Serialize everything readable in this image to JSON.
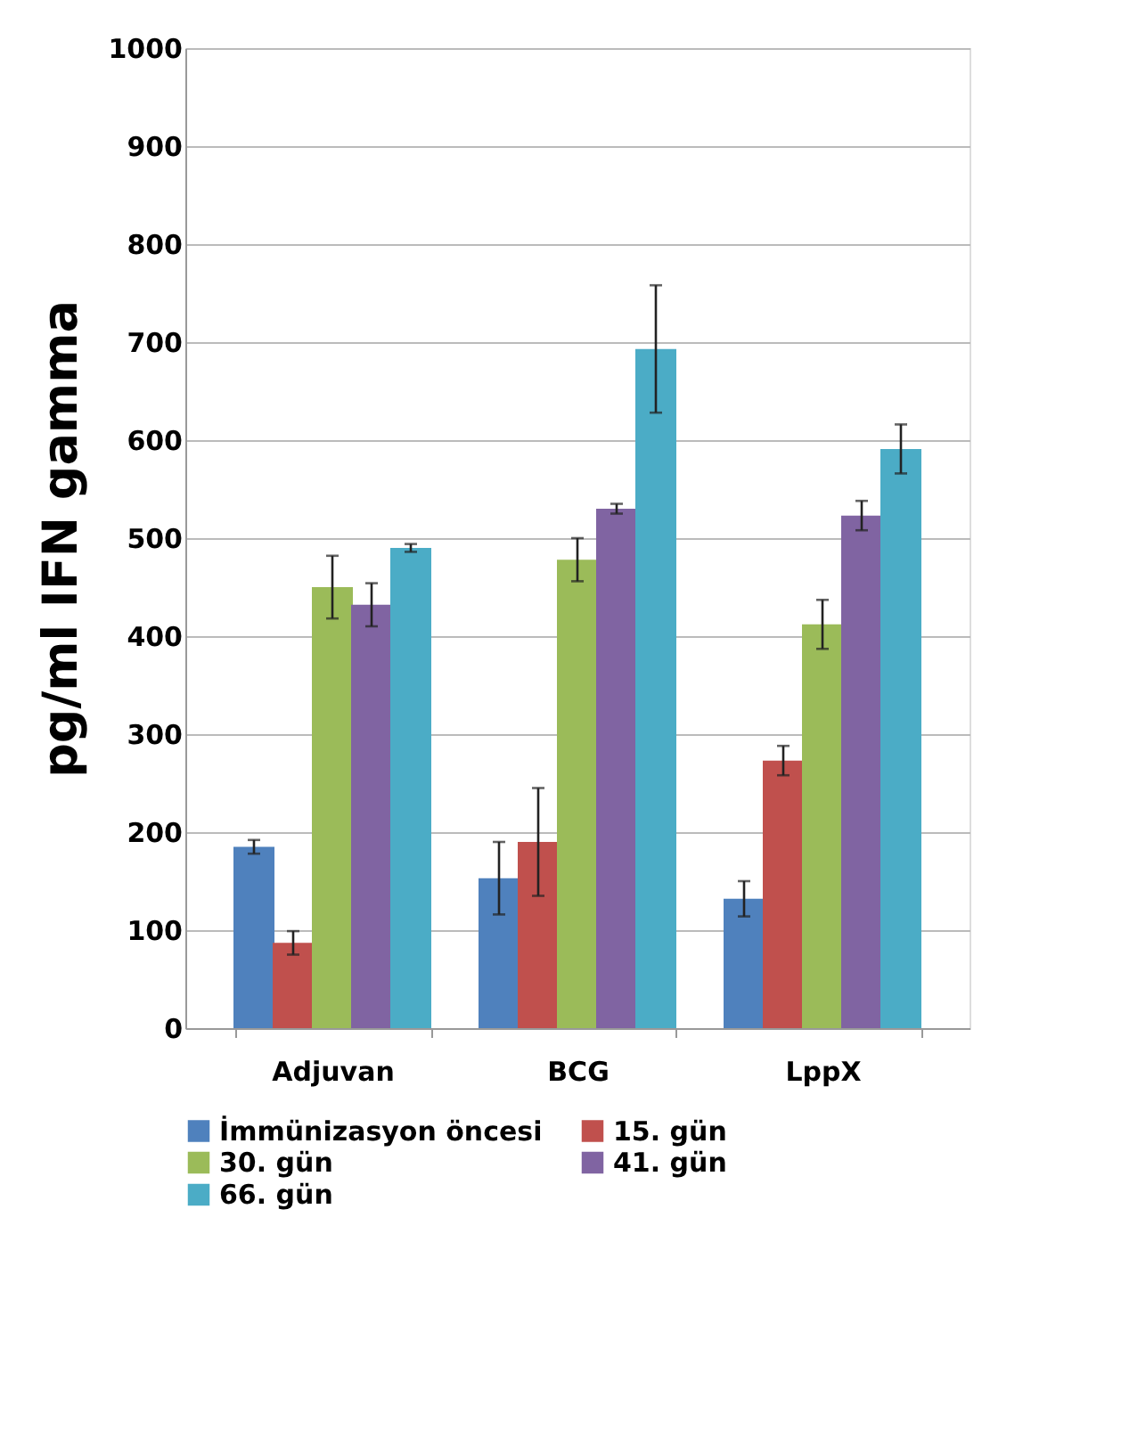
{
  "chart_data": {
    "type": "bar",
    "ylabel": "pg/ml IFN gamma",
    "categories": [
      "Adjuvan",
      "BCG",
      "LppX"
    ],
    "series": [
      {
        "name": "İmmünizasyon öncesi",
        "color": "#4f81bd",
        "values": [
          185,
          153,
          132
        ],
        "errors": [
          7,
          37,
          18
        ]
      },
      {
        "name": "15. gün",
        "color": "#c0504d",
        "values": [
          87,
          190,
          273
        ],
        "errors": [
          12,
          55,
          15
        ]
      },
      {
        "name": "30. gün",
        "color": "#9bbb59",
        "values": [
          450,
          478,
          412
        ],
        "errors": [
          32,
          22,
          25
        ]
      },
      {
        "name": "41. gün",
        "color": "#8064a2",
        "values": [
          432,
          530,
          523
        ],
        "errors": [
          22,
          5,
          15
        ]
      },
      {
        "name": "66. gün",
        "color": "#4bacc6",
        "values": [
          490,
          693,
          591
        ],
        "errors": [
          4,
          65,
          25
        ]
      }
    ],
    "ylim": [
      0,
      1000
    ],
    "yticks": [
      0,
      100,
      200,
      300,
      400,
      500,
      600,
      700,
      800,
      900,
      1000
    ],
    "grid": "y",
    "legend": "bottom"
  }
}
